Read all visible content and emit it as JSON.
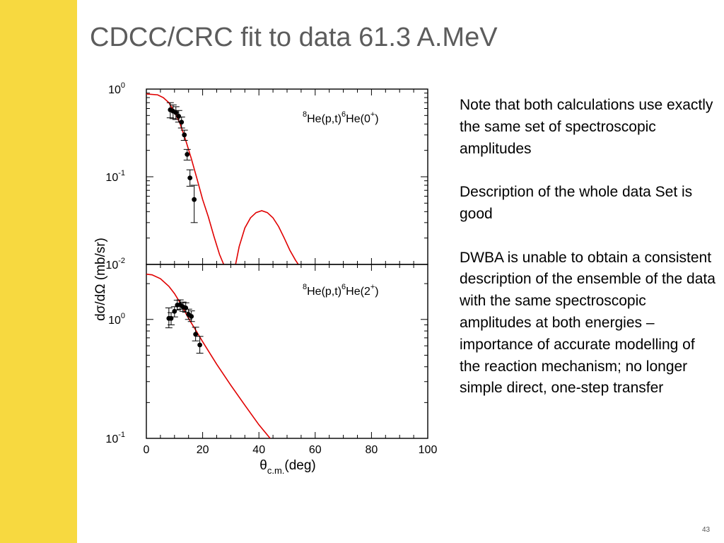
{
  "slide": {
    "title": "CDCC/CRC fit to data 61.3 A.MeV",
    "notes": [
      "Note that both calculations use exactly the same set of spectroscopic amplitudes",
      "Description of the whole data Set is good",
      "DWBA is unable to obtain a consistent description of the ensemble of the data with the same spectroscopic amplitudes at both energies – importance of accurate modelling of the reaction mechanism; no longer simple direct, one-step transfer"
    ],
    "page_number": "43"
  },
  "colors": {
    "sidebar": "#f7d940",
    "calculation_curve": "#e00000",
    "data_points": "#000000",
    "title_text": "#5c5c5c"
  },
  "chart_data": {
    "type": "scatter",
    "xlabel": "θc.m.(deg)",
    "xlabel_parts": {
      "symbol": "θ",
      "subscript": "c.m.",
      "unit": "(deg)"
    },
    "ylabel": "dσ/dΩ (mb/sr)",
    "xlim": [
      0,
      100
    ],
    "xticks": [
      "0",
      "20",
      "40",
      "60",
      "80",
      "100"
    ],
    "panels": [
      {
        "label": "8He(p,t)6He(0+)",
        "label_parts": {
          "pre_sup": "8",
          "pre": "He(p,t)",
          "mid_sup": "6",
          "post": "He(0",
          "post_sup": "+",
          "end": ")"
        },
        "yscale": "log",
        "ylim": [
          0.01,
          1.0
        ],
        "yticks": [
          {
            "value": 1.0,
            "base": "10",
            "exp": "0"
          },
          {
            "value": 0.1,
            "base": "10",
            "exp": "-1"
          },
          {
            "value": 0.01,
            "base": "10",
            "exp": "-2"
          }
        ],
        "data": [
          {
            "x": 8.5,
            "y": 0.58,
            "yerr_lo": 0.47,
            "yerr_hi": 0.7
          },
          {
            "x": 9.5,
            "y": 0.56,
            "yerr_lo": 0.46,
            "yerr_hi": 0.66
          },
          {
            "x": 10.5,
            "y": 0.54,
            "yerr_lo": 0.45,
            "yerr_hi": 0.63
          },
          {
            "x": 11.5,
            "y": 0.49,
            "yerr_lo": 0.42,
            "yerr_hi": 0.57
          },
          {
            "x": 12.5,
            "y": 0.42,
            "yerr_lo": 0.36,
            "yerr_hi": 0.48
          },
          {
            "x": 13.5,
            "y": 0.3,
            "yerr_lo": 0.26,
            "yerr_hi": 0.34
          },
          {
            "x": 14.5,
            "y": 0.18,
            "yerr_lo": 0.155,
            "yerr_hi": 0.205
          },
          {
            "x": 15.5,
            "y": 0.097,
            "yerr_lo": 0.078,
            "yerr_hi": 0.12
          },
          {
            "x": 17.0,
            "y": 0.055,
            "yerr_lo": 0.03,
            "yerr_hi": 0.08
          }
        ],
        "curve": [
          {
            "x": 0,
            "y": 0.88
          },
          {
            "x": 4,
            "y": 0.86
          },
          {
            "x": 6,
            "y": 0.8
          },
          {
            "x": 8,
            "y": 0.7
          },
          {
            "x": 10,
            "y": 0.55
          },
          {
            "x": 12,
            "y": 0.4
          },
          {
            "x": 14,
            "y": 0.26
          },
          {
            "x": 16,
            "y": 0.16
          },
          {
            "x": 18,
            "y": 0.095
          },
          {
            "x": 20,
            "y": 0.055
          },
          {
            "x": 22,
            "y": 0.035
          },
          {
            "x": 24,
            "y": 0.021
          },
          {
            "x": 26,
            "y": 0.013
          },
          {
            "x": 27.5,
            "y": 0.01
          }
        ],
        "curve2": [
          {
            "x": 31.7,
            "y": 0.01
          },
          {
            "x": 33,
            "y": 0.016
          },
          {
            "x": 35,
            "y": 0.026
          },
          {
            "x": 37,
            "y": 0.034
          },
          {
            "x": 39,
            "y": 0.039
          },
          {
            "x": 41,
            "y": 0.041
          },
          {
            "x": 43,
            "y": 0.039
          },
          {
            "x": 45,
            "y": 0.034
          },
          {
            "x": 47,
            "y": 0.027
          },
          {
            "x": 49,
            "y": 0.02
          },
          {
            "x": 51,
            "y": 0.0145
          },
          {
            "x": 53,
            "y": 0.0112
          },
          {
            "x": 54,
            "y": 0.01
          }
        ]
      },
      {
        "label": "8He(p,t)6He(2+)",
        "label_parts": {
          "pre_sup": "8",
          "pre": "He(p,t)",
          "mid_sup": "6",
          "post": "He(2",
          "post_sup": "+",
          "end": ")"
        },
        "yscale": "log",
        "ylim": [
          0.1,
          2.9
        ],
        "yticks": [
          {
            "value": 1.0,
            "base": "10",
            "exp": "0"
          },
          {
            "value": 0.1,
            "base": "10",
            "exp": "-1"
          }
        ],
        "data": [
          {
            "x": 8.0,
            "y": 1.02,
            "yerr_lo": 0.85,
            "yerr_hi": 1.25
          },
          {
            "x": 8.8,
            "y": 1.02,
            "yerr_lo": 0.9,
            "yerr_hi": 1.14
          },
          {
            "x": 10.0,
            "y": 1.17,
            "yerr_lo": 1.05,
            "yerr_hi": 1.28
          },
          {
            "x": 11.0,
            "y": 1.32,
            "yerr_lo": 1.2,
            "yerr_hi": 1.45
          },
          {
            "x": 12.0,
            "y": 1.33,
            "yerr_lo": 1.22,
            "yerr_hi": 1.46
          },
          {
            "x": 13.0,
            "y": 1.28,
            "yerr_lo": 1.17,
            "yerr_hi": 1.4
          },
          {
            "x": 14.0,
            "y": 1.25,
            "yerr_lo": 1.15,
            "yerr_hi": 1.38
          },
          {
            "x": 15.0,
            "y": 1.1,
            "yerr_lo": 1.0,
            "yerr_hi": 1.22
          },
          {
            "x": 16.0,
            "y": 1.06,
            "yerr_lo": 0.96,
            "yerr_hi": 1.18
          },
          {
            "x": 17.5,
            "y": 0.75,
            "yerr_lo": 0.66,
            "yerr_hi": 0.86
          },
          {
            "x": 19.0,
            "y": 0.61,
            "yerr_lo": 0.52,
            "yerr_hi": 0.72
          }
        ],
        "curve": [
          {
            "x": 0,
            "y": 2.4
          },
          {
            "x": 2,
            "y": 2.37
          },
          {
            "x": 5,
            "y": 2.2
          },
          {
            "x": 8,
            "y": 1.9
          },
          {
            "x": 10,
            "y": 1.65
          },
          {
            "x": 12,
            "y": 1.38
          },
          {
            "x": 15,
            "y": 1.02
          },
          {
            "x": 18,
            "y": 0.78
          },
          {
            "x": 20,
            "y": 0.65
          },
          {
            "x": 25,
            "y": 0.42
          },
          {
            "x": 30,
            "y": 0.28
          },
          {
            "x": 35,
            "y": 0.19
          },
          {
            "x": 40,
            "y": 0.13
          },
          {
            "x": 44,
            "y": 0.1
          }
        ]
      }
    ]
  }
}
